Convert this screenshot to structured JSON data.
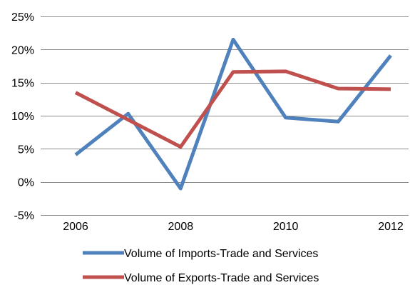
{
  "chart_data": {
    "type": "line",
    "title": "",
    "xlabel": "",
    "ylabel": "",
    "x": [
      2006,
      2007,
      2008,
      2009,
      2010,
      2011,
      2012
    ],
    "x_tick_labels": [
      "2006",
      "2008",
      "2010",
      "2012"
    ],
    "x_ticks": [
      2006,
      2008,
      2010,
      2012
    ],
    "ylim": [
      -5,
      25
    ],
    "y_ticks": [
      -5,
      0,
      5,
      10,
      15,
      20,
      25
    ],
    "y_tick_labels": [
      "-5%",
      "0%",
      "5%",
      "10%",
      "15%",
      "20%",
      "25%"
    ],
    "grid": "horizontal",
    "legend_position": "bottom",
    "series": [
      {
        "name": "Volume of Imports-Trade and Services",
        "color": "#4f81bd",
        "values": [
          4.1,
          10.3,
          -1.0,
          21.5,
          9.7,
          9.1,
          19.1
        ]
      },
      {
        "name": "Volume of Exports-Trade and Services",
        "color": "#c0504d",
        "values": [
          13.5,
          9.4,
          5.3,
          16.6,
          16.7,
          14.1,
          14.0
        ]
      }
    ]
  }
}
